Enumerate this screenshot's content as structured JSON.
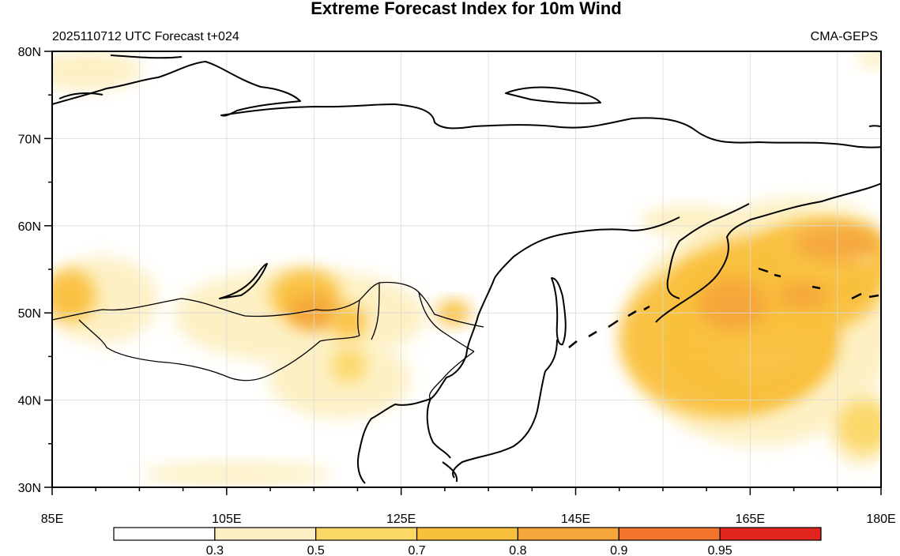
{
  "title": "Extreme Forecast Index for 10m Wind",
  "subtitle_left": "2025110712 UTC Forecast t+024",
  "subtitle_right": "CMA-GEPS",
  "map": {
    "lon_range": [
      85,
      180
    ],
    "lat_range": [
      30,
      80
    ],
    "lon_ticks": [
      {
        "value": 85,
        "label": "85E"
      },
      {
        "value": 105,
        "label": "105E"
      },
      {
        "value": 125,
        "label": "125E"
      },
      {
        "value": 145,
        "label": "145E"
      },
      {
        "value": 165,
        "label": "165E"
      },
      {
        "value": 180,
        "label": "180E"
      }
    ],
    "lat_ticks": [
      {
        "value": 30,
        "label": "30N"
      },
      {
        "value": 40,
        "label": "40N"
      },
      {
        "value": 50,
        "label": "50N"
      },
      {
        "value": 60,
        "label": "60N"
      },
      {
        "value": 70,
        "label": "70N"
      },
      {
        "value": 80,
        "label": "80N"
      }
    ],
    "gridlines": true
  },
  "colorbar": {
    "labels": [
      "0.3",
      "0.5",
      "0.7",
      "0.8",
      "0.9",
      "0.95"
    ],
    "colors": [
      "#ffffff",
      "#fdf0c4",
      "#fbd766",
      "#f9c03c",
      "#f5a63a",
      "#f2752f",
      "#e0251f"
    ]
  },
  "efi_regions": [
    {
      "lon": 162,
      "lat": 47,
      "rx": 12,
      "ry": 9,
      "level": 3
    },
    {
      "lon": 168,
      "lat": 53,
      "rx": 12,
      "ry": 6,
      "level": 3
    },
    {
      "lon": 163,
      "lat": 51,
      "rx": 4,
      "ry": 3,
      "level": 4
    },
    {
      "lon": 171,
      "lat": 52,
      "rx": 3,
      "ry": 1.5,
      "level": 4
    },
    {
      "lon": 175,
      "lat": 58,
      "rx": 5,
      "ry": 2,
      "level": 4
    },
    {
      "lon": 159,
      "lat": 45,
      "rx": 3,
      "ry": 2,
      "level": 3
    },
    {
      "lon": 114,
      "lat": 52,
      "rx": 4,
      "ry": 3,
      "level": 3
    },
    {
      "lon": 115,
      "lat": 50,
      "rx": 3,
      "ry": 2,
      "level": 4
    },
    {
      "lon": 87,
      "lat": 52,
      "rx": 3,
      "ry": 3,
      "level": 3
    },
    {
      "lon": 119,
      "lat": 49,
      "rx": 2,
      "ry": 2,
      "level": 3
    },
    {
      "lon": 131,
      "lat": 50,
      "rx": 2,
      "ry": 1.5,
      "level": 3
    },
    {
      "lon": 119,
      "lat": 44,
      "rx": 2,
      "ry": 2,
      "level": 2
    },
    {
      "lon": 178,
      "lat": 37,
      "rx": 3,
      "ry": 3,
      "level": 2
    }
  ]
}
